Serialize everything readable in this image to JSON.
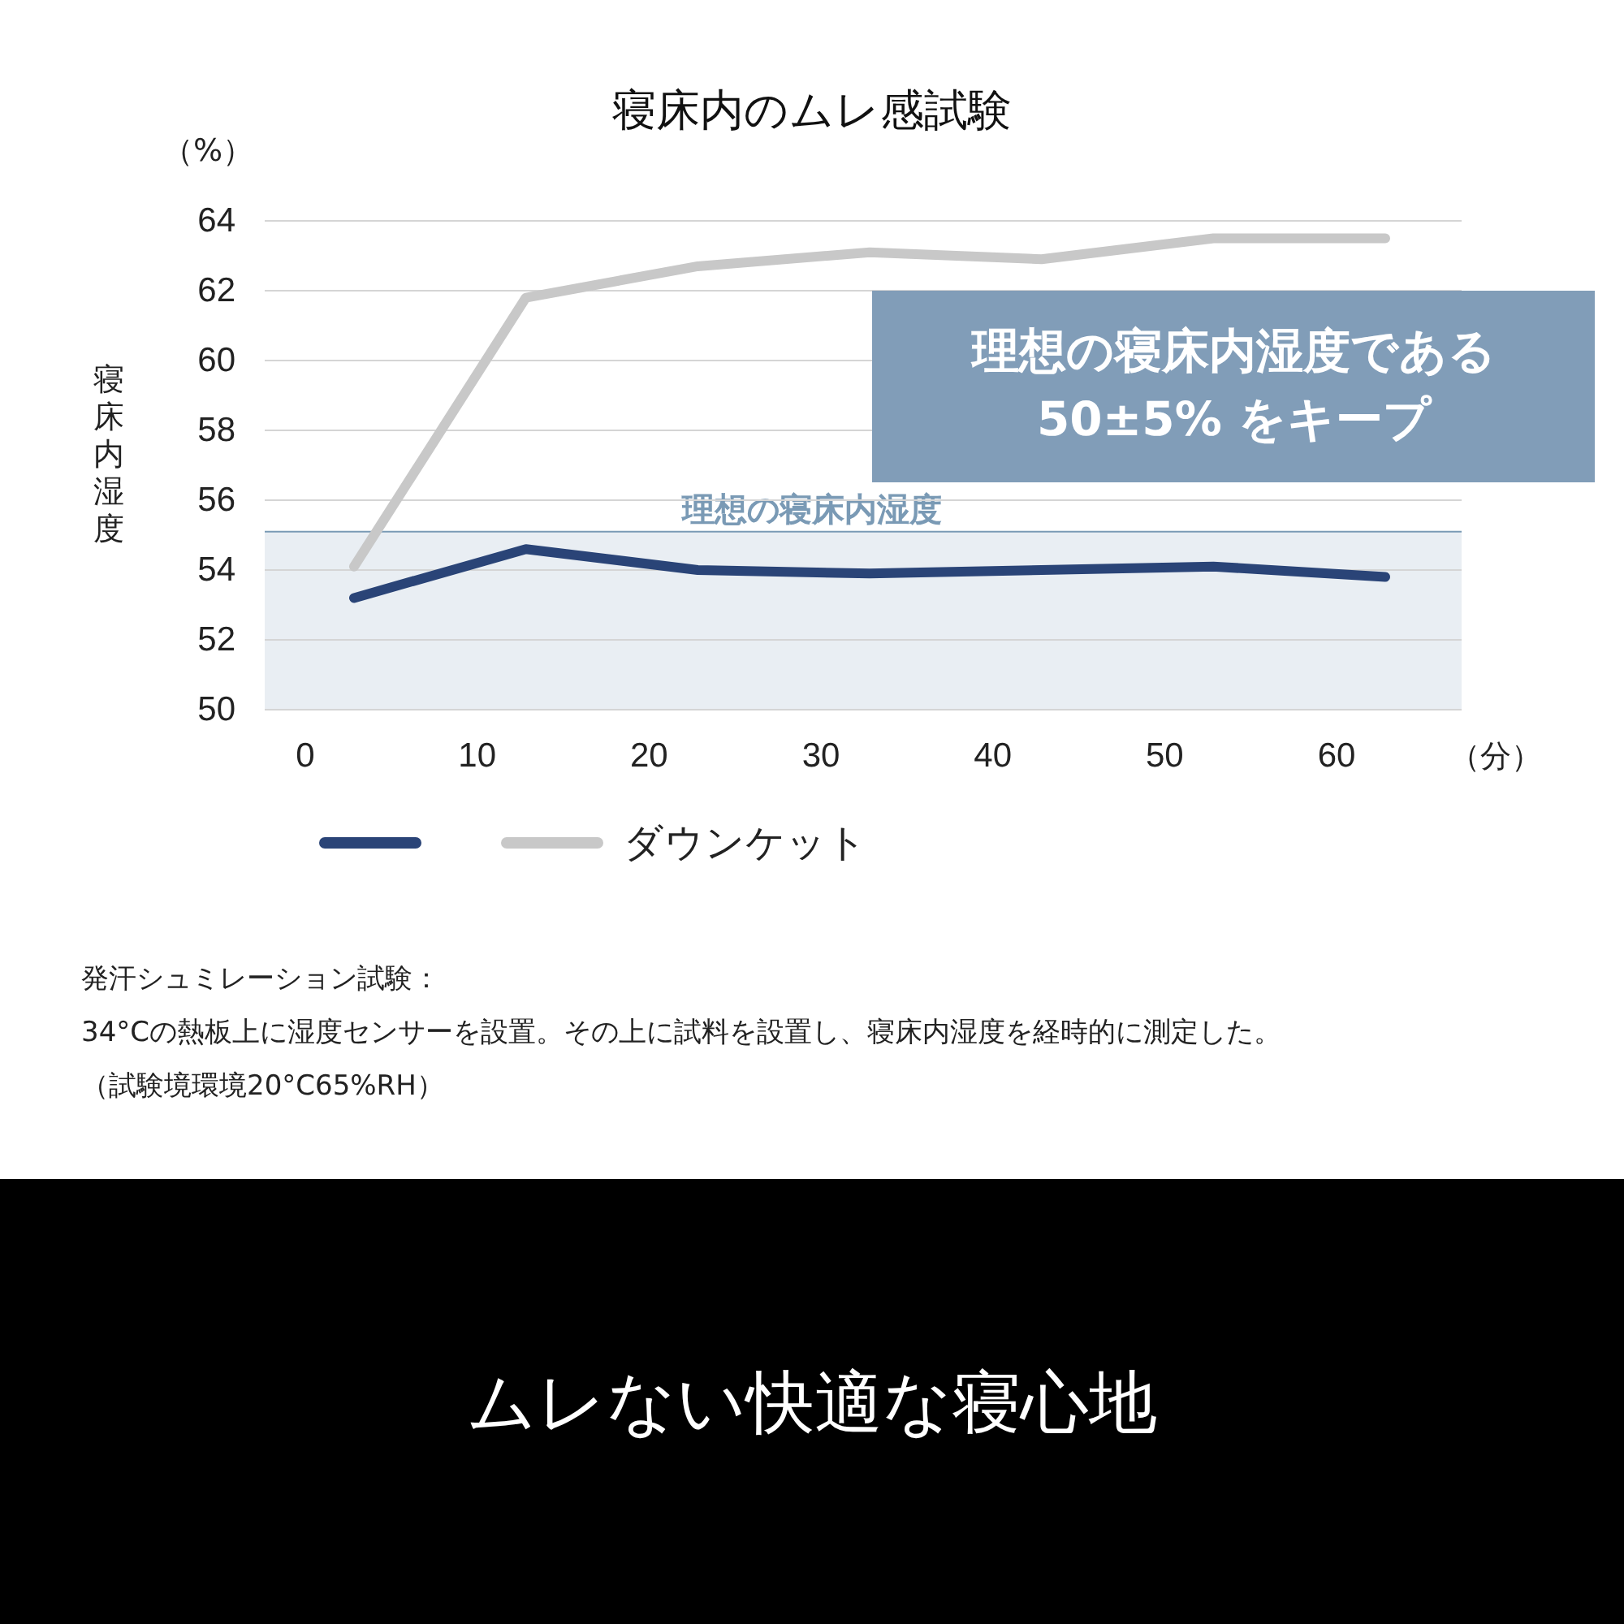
{
  "chart_data": {
    "type": "line",
    "title": "寝床内のムレ感試験",
    "ylabel": "寝床内湿度",
    "xlabel": "（分）",
    "categories": [
      "0",
      "10",
      "20",
      "30",
      "40",
      "50",
      "60"
    ],
    "series": [
      {
        "color": "#2a4477",
        "values": [
          53.2,
          54.6,
          54.0,
          53.9,
          54.0,
          54.1,
          53.8
        ]
      },
      {
        "name": "ダウンケット",
        "color": "#c8c8c8",
        "values": [
          54.1,
          61.8,
          62.7,
          63.1,
          62.9,
          63.5,
          63.5
        ]
      }
    ],
    "ylim": [
      50,
      64
    ],
    "yticks": [
      50,
      52,
      54,
      56,
      58,
      60,
      62,
      64
    ],
    "grid": "y",
    "legend": "bottom",
    "marker": "none",
    "line_style": "solid",
    "bands": [
      {
        "axis": "y",
        "from": 50,
        "to": 55.1,
        "label": "理想の寝床内湿度",
        "color": "#e9eef3"
      }
    ],
    "ref_lines": [
      {
        "axis": "y",
        "value": 55.1,
        "color": "#7a9ab5"
      }
    ],
    "annotations": [
      "（%）",
      "理想の寝床内湿度である\n50±5% をキープ",
      "発汗シュミレーション試験：",
      "34°Cの熱板上に湿度センサーを設置。その上に試料を設置し、寝床内湿度を経時的に測定した。",
      "（試験境環境20°C65%RH）",
      "ムレない快適な寝心地"
    ]
  }
}
